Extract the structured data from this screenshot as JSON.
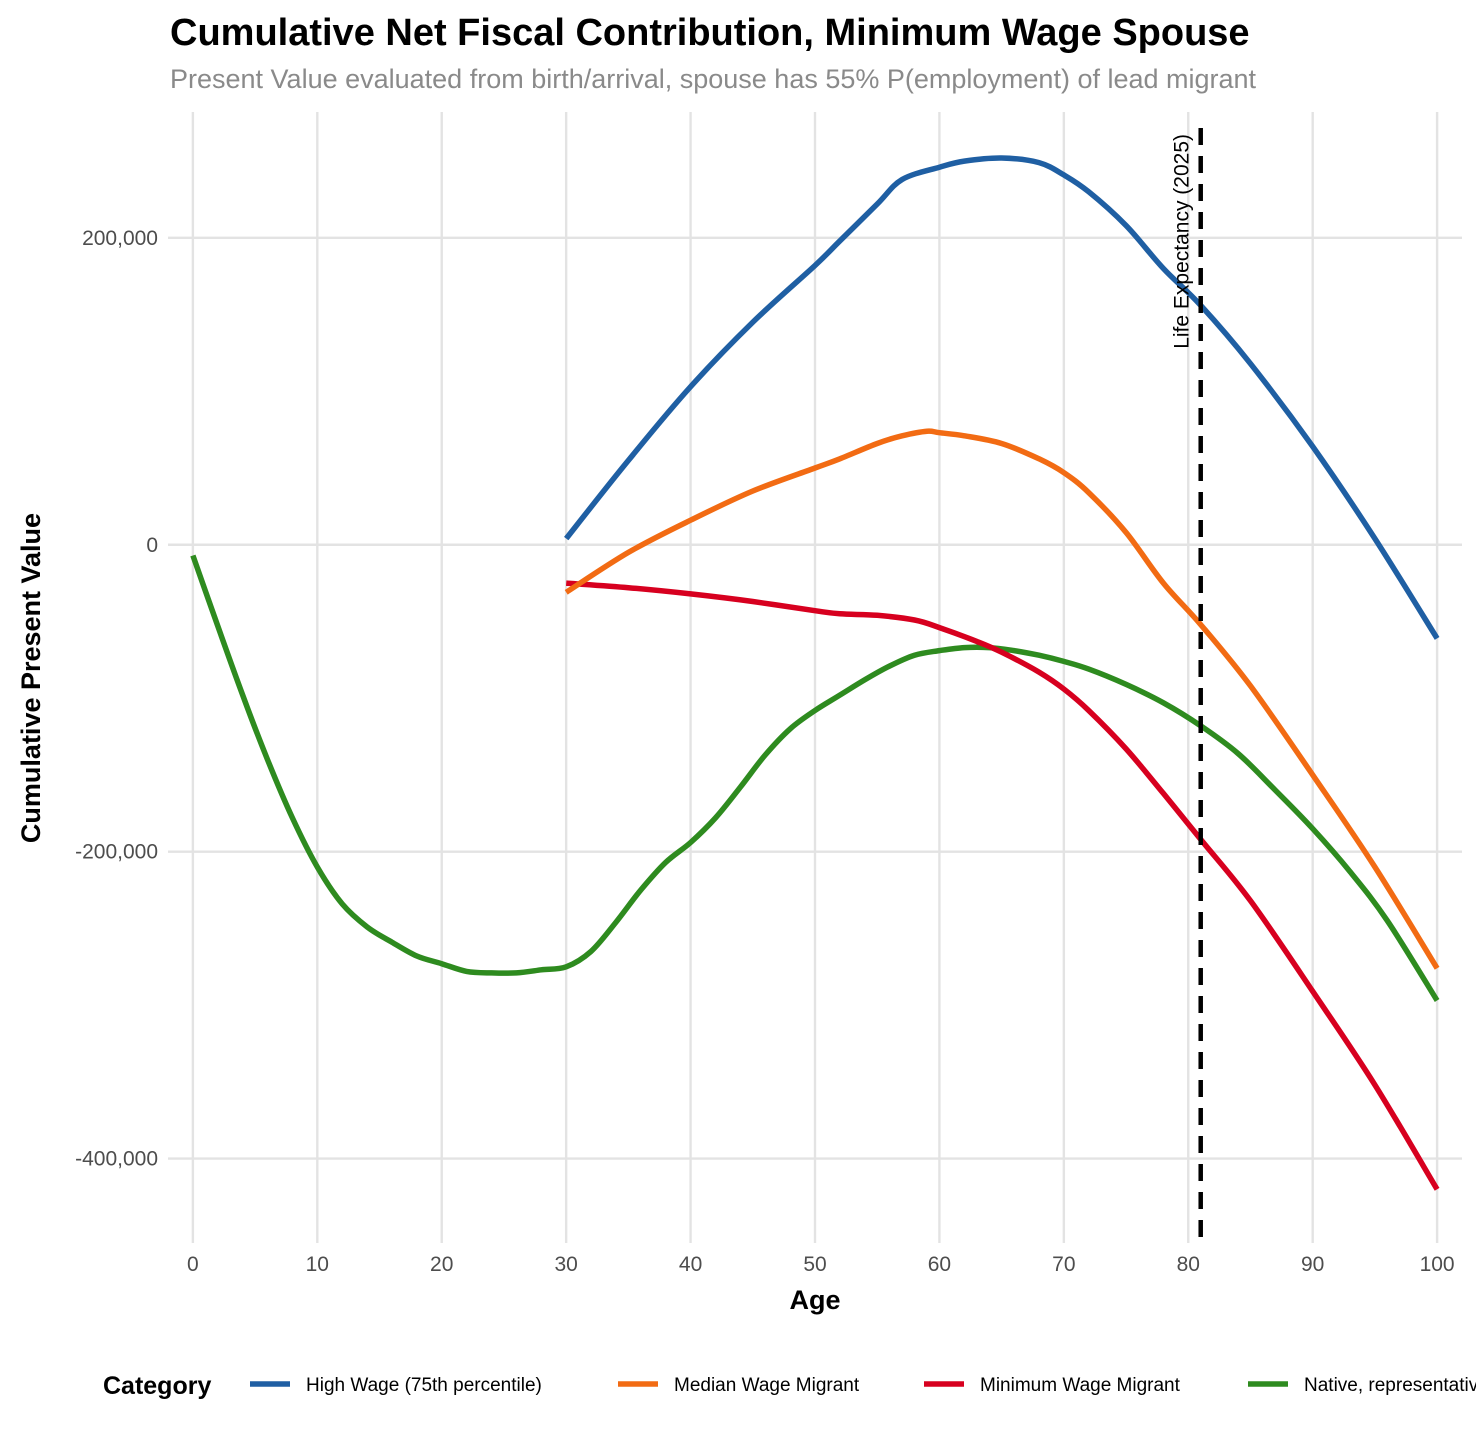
{
  "chart_data": {
    "type": "line",
    "title": "Cumulative Net Fiscal Contribution, Minimum Wage Spouse",
    "subtitle": "Present Value evaluated from birth/arrival, spouse has 55% P(employment) of lead migrant",
    "xlabel": "Age",
    "ylabel": "Cumulative Present Value",
    "xlim": [
      -2,
      102
    ],
    "ylim": [
      -455000,
      282000
    ],
    "x_ticks": [
      0,
      10,
      20,
      30,
      40,
      50,
      60,
      70,
      80,
      90,
      100
    ],
    "x_tick_labels": [
      "0",
      "10",
      "20",
      "30",
      "40",
      "50",
      "60",
      "70",
      "80",
      "90",
      "100"
    ],
    "y_ticks": [
      -400000,
      -200000,
      0,
      200000
    ],
    "y_tick_labels": [
      "-400,000",
      "-200,000",
      "0",
      "200,000"
    ],
    "grid": true,
    "legend_title": "Category",
    "legend_position": "bottom",
    "annotation": {
      "text": "Life Expectancy (2025)",
      "x": 81
    },
    "series": [
      {
        "name": "High Wage (75th percentile)",
        "color": "#1f5fa3",
        "x": [
          30,
          35,
          40,
          45,
          50,
          52,
          55,
          57,
          60,
          62,
          65,
          68,
          70,
          72,
          75,
          78,
          81,
          85,
          90,
          95,
          100
        ],
        "y": [
          4000,
          55000,
          103000,
          145000,
          182000,
          198000,
          222000,
          238000,
          246000,
          250000,
          252000,
          249000,
          241000,
          230000,
          208000,
          180000,
          156000,
          118000,
          64000,
          4000,
          -61000
        ]
      },
      {
        "name": "Median Wage Migrant",
        "color": "#f26b13",
        "x": [
          30,
          35,
          40,
          45,
          50,
          52,
          55,
          57,
          59,
          60,
          62,
          65,
          68,
          70,
          72,
          75,
          78,
          81,
          85,
          90,
          95,
          100
        ],
        "y": [
          -31000,
          -5000,
          16000,
          35000,
          50000,
          56000,
          66000,
          71000,
          74000,
          73000,
          71000,
          66000,
          56000,
          47000,
          34000,
          8000,
          -25000,
          -52000,
          -92000,
          -150000,
          -210000,
          -276000
        ]
      },
      {
        "name": "Minimum Wage Migrant",
        "color": "#d7001f",
        "x": [
          30,
          35,
          40,
          45,
          50,
          52,
          55,
          58,
          60,
          63,
          65,
          68,
          70,
          72,
          75,
          78,
          81,
          85,
          90,
          95,
          100
        ],
        "y": [
          -25000,
          -28000,
          -32000,
          -37000,
          -43000,
          -45000,
          -46000,
          -49000,
          -54000,
          -63000,
          -70000,
          -83000,
          -94000,
          -108000,
          -133000,
          -162000,
          -192000,
          -232000,
          -291000,
          -352000,
          -420000
        ]
      },
      {
        "name": "Native, representative",
        "color": "#2e8b1f",
        "x": [
          0,
          2,
          4,
          6,
          8,
          10,
          12,
          14,
          16,
          18,
          20,
          22,
          24,
          26,
          28,
          30,
          32,
          34,
          36,
          38,
          40,
          42,
          44,
          46,
          48,
          50,
          52,
          54,
          56,
          58,
          60,
          62,
          64,
          66,
          68,
          70,
          72,
          75,
          78,
          81,
          84,
          87,
          90,
          93,
          96,
          100
        ],
        "y": [
          -7000,
          -53000,
          -98000,
          -140000,
          -178000,
          -210000,
          -234000,
          -249000,
          -259000,
          -268000,
          -273000,
          -278000,
          -279000,
          -279000,
          -277000,
          -275000,
          -265000,
          -246000,
          -225000,
          -207000,
          -194000,
          -178000,
          -158000,
          -137000,
          -120000,
          -108000,
          -98000,
          -88000,
          -79000,
          -72000,
          -69000,
          -67000,
          -67000,
          -69000,
          -72000,
          -76000,
          -81000,
          -91000,
          -103000,
          -118000,
          -136000,
          -160000,
          -185000,
          -213000,
          -245000,
          -297000
        ]
      }
    ]
  }
}
